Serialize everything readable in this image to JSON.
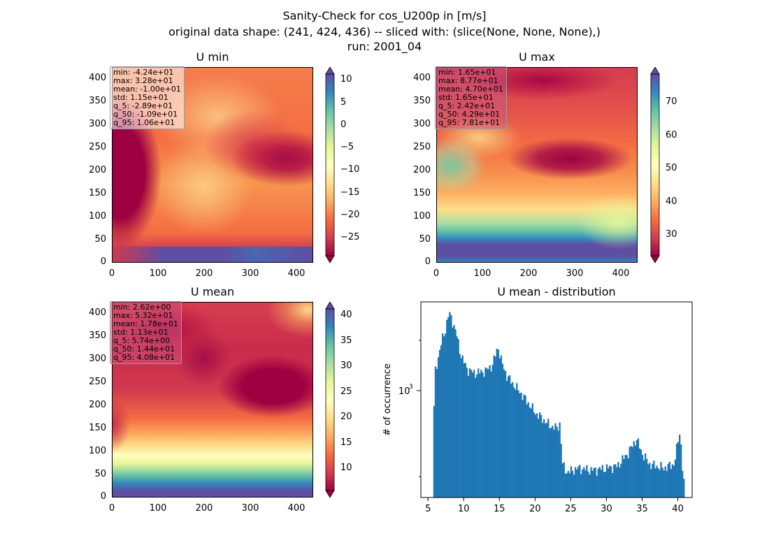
{
  "figure": {
    "title_lines": [
      "Sanity-Check for cos_U200p in [m/s]",
      "original data shape: (241, 424, 436) -- sliced with: (slice(None, None, None),)",
      "run: 2001_04"
    ]
  },
  "panels": {
    "umin": {
      "title": "U min",
      "stats": [
        "min: -4.24e+01",
        "max: 3.28e+01",
        "mean: -1.00e+01",
        "std: 1.15e+01",
        "q_5: -2.89e+01",
        "q_50: -1.09e+01",
        "q_95: 1.06e+01"
      ],
      "colorbar_ticks": [
        "10",
        "5",
        "0",
        "−5",
        "−10",
        "−15",
        "−20",
        "−25"
      ],
      "colorbar_range": [
        -28.9,
        10.6
      ]
    },
    "umax": {
      "title": "U max",
      "stats": [
        "min: 1.65e+01",
        "max: 8.77e+01",
        "mean: 4.70e+01",
        "std: 1.65e+01",
        "q_5: 2.42e+01",
        "q_50: 4.29e+01",
        "q_95: 7.81e+01"
      ],
      "colorbar_ticks": [
        "70",
        "60",
        "50",
        "40",
        "30"
      ],
      "colorbar_range": [
        24.2,
        78.1
      ]
    },
    "umean": {
      "title": "U mean",
      "stats": [
        "min: 2.62e+00",
        "max: 5.32e+01",
        "mean: 1.78e+01",
        "std: 1.13e+01",
        "q_5: 5.74e+00",
        "q_50: 1.44e+01",
        "q_95: 4.08e+01"
      ],
      "colorbar_ticks": [
        "40",
        "35",
        "30",
        "25",
        "20",
        "15",
        "10"
      ],
      "colorbar_range": [
        5.74,
        40.8
      ]
    },
    "map_axes": {
      "x_ticks": [
        "0",
        "100",
        "200",
        "300",
        "400"
      ],
      "y_ticks": [
        "400",
        "350",
        "300",
        "250",
        "200",
        "150",
        "100",
        "50",
        "0"
      ]
    }
  },
  "chart_data": {
    "type": "bar",
    "title": "U mean - distribution",
    "xlabel": "",
    "ylabel": "# of occurrence",
    "x_ticks": [
      "5",
      "10",
      "15",
      "20",
      "25",
      "30",
      "35",
      "40"
    ],
    "y_tick": "10",
    "y_tick_exp": "3",
    "xlim": [
      4.0,
      42.0
    ],
    "ylim_log": [
      170,
      4700
    ],
    "log_y": true,
    "color": "#1f77b4",
    "bin_start": 5.74,
    "bin_width": 0.2,
    "anchors": [
      [
        5.74,
        520
      ],
      [
        6.0,
        1450
      ],
      [
        6.5,
        1900
      ],
      [
        7.0,
        2500
      ],
      [
        7.5,
        3000
      ],
      [
        7.8,
        3700
      ],
      [
        8.1,
        3800
      ],
      [
        8.5,
        3300
      ],
      [
        9.0,
        2700
      ],
      [
        9.5,
        2000
      ],
      [
        10.0,
        1700
      ],
      [
        10.5,
        1500
      ],
      [
        11.5,
        1400
      ],
      [
        13.0,
        1450
      ],
      [
        14.0,
        1600
      ],
      [
        14.8,
        2200
      ],
      [
        15.3,
        1700
      ],
      [
        16.0,
        1350
      ],
      [
        17.0,
        1150
      ],
      [
        18.0,
        1000
      ],
      [
        19.0,
        850
      ],
      [
        20.0,
        720
      ],
      [
        21.0,
        650
      ],
      [
        22.0,
        580
      ],
      [
        23.0,
        550
      ],
      [
        23.5,
        600
      ],
      [
        23.8,
        300
      ],
      [
        24.5,
        260
      ],
      [
        26.0,
        280
      ],
      [
        28.0,
        270
      ],
      [
        30.0,
        280
      ],
      [
        31.5,
        290
      ],
      [
        33.0,
        360
      ],
      [
        34.2,
        460
      ],
      [
        35.0,
        360
      ],
      [
        36.0,
        300
      ],
      [
        38.0,
        280
      ],
      [
        39.5,
        300
      ],
      [
        40.3,
        540
      ],
      [
        40.6,
        300
      ],
      [
        40.8,
        220
      ]
    ]
  }
}
